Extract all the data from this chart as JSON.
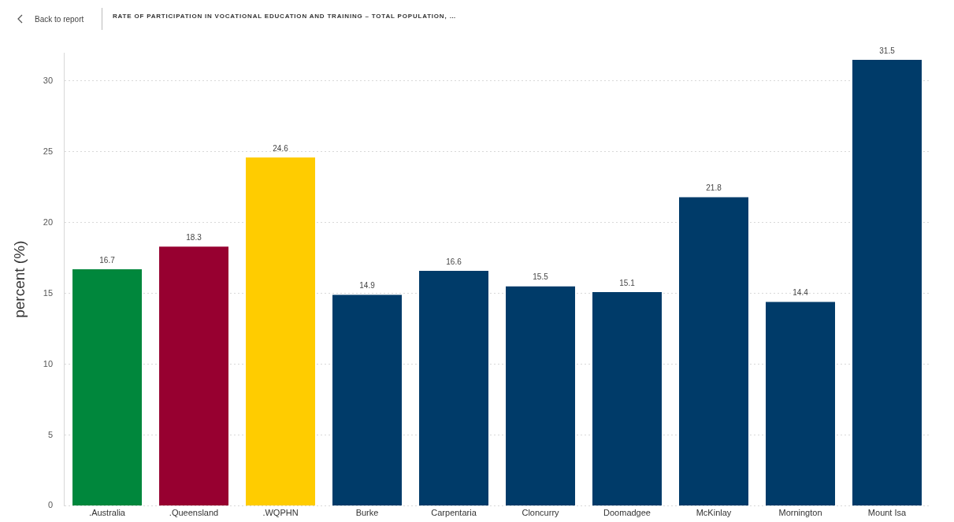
{
  "chart_data": {
    "type": "bar",
    "title": "RATE OF PARTICIPATION IN VOCATIONAL EDUCATION AND TRAINING – TOTAL POPULATION, …",
    "annotations": [
      "Back to report"
    ],
    "ylabel": "percent (%)",
    "categories": [
      ".Australia",
      ".Queensland",
      ".WQPHN",
      "Burke",
      "Carpentaria",
      "Cloncurry",
      "Doomadgee",
      "McKinlay",
      "Mornington",
      "Mount Isa"
    ],
    "values": [
      16.7,
      18.3,
      24.6,
      14.9,
      16.6,
      15.5,
      15.1,
      21.8,
      14.4,
      31.5
    ],
    "colors": [
      "#00873c",
      "#970030",
      "#ffcc00",
      "#003b69",
      "#003b69",
      "#003b69",
      "#003b69",
      "#003b69",
      "#003b69",
      "#003b69"
    ],
    "yticks": [
      0,
      5,
      10,
      15,
      20,
      25,
      30
    ],
    "ylim": [
      0,
      32
    ],
    "grid": "y",
    "data_labels": true,
    "legend": false
  }
}
